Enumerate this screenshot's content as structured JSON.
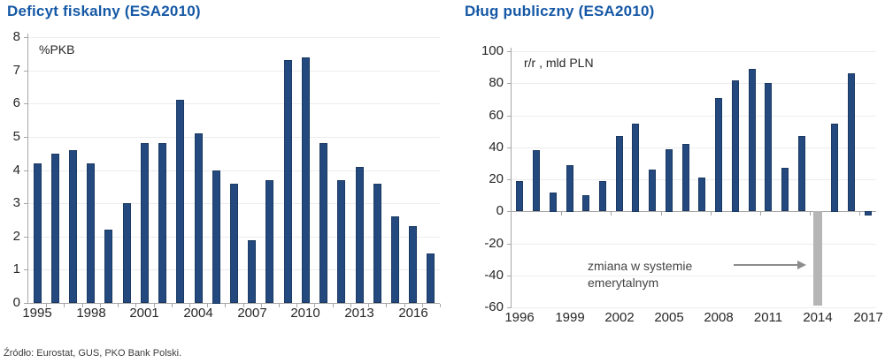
{
  "source_note": "Źródło: Eurostat, GUS, PKO Bank Polski.",
  "colors": {
    "title": "#1558a5",
    "bar": "#24497e",
    "bar_border": "#1b3a63",
    "highlight_bar": "#b5b5b5",
    "axis": "#a6a6a6",
    "gridline": "#ececec",
    "text": "#262626",
    "annotation_text": "#454545",
    "arrow": "#8c8c8c"
  },
  "chart_data": [
    {
      "type": "bar",
      "title": "Deficyt fiskalny (ESA2010)",
      "ylabel": "%PKB",
      "categories": [
        1995,
        1996,
        1997,
        1998,
        1999,
        2000,
        2001,
        2002,
        2003,
        2004,
        2005,
        2006,
        2007,
        2008,
        2009,
        2010,
        2011,
        2012,
        2013,
        2014,
        2015,
        2016,
        2017
      ],
      "values": [
        4.2,
        4.5,
        4.6,
        4.2,
        2.2,
        3.0,
        4.8,
        4.8,
        6.1,
        5.1,
        4.0,
        3.6,
        1.9,
        3.7,
        7.3,
        7.4,
        4.8,
        3.7,
        4.1,
        3.6,
        2.6,
        2.3,
        1.5
      ],
      "ylim": [
        0,
        8
      ],
      "yticks": [
        0,
        1,
        2,
        3,
        4,
        5,
        6,
        7,
        8
      ],
      "xtick_years": [
        1995,
        1998,
        2001,
        2004,
        2007,
        2010,
        2013,
        2016
      ],
      "grid": true,
      "legend": null
    },
    {
      "type": "bar",
      "title": "Dług publiczny (ESA2010)",
      "ylabel": "r/r , mld PLN",
      "categories": [
        1996,
        1997,
        1998,
        1999,
        2000,
        2001,
        2002,
        2003,
        2004,
        2005,
        2006,
        2007,
        2008,
        2009,
        2010,
        2011,
        2012,
        2013,
        2014,
        2015,
        2016,
        2017
      ],
      "values": [
        19,
        38,
        12,
        29,
        10,
        19,
        47,
        55,
        26,
        39,
        42,
        21,
        71,
        82,
        89,
        80,
        27,
        47,
        -59,
        55,
        86,
        -3
      ],
      "ylim": [
        -60,
        100
      ],
      "yticks": [
        -60,
        -40,
        -20,
        0,
        20,
        40,
        60,
        80,
        100
      ],
      "xtick_years": [
        1996,
        1999,
        2002,
        2005,
        2008,
        2011,
        2014,
        2017
      ],
      "grid": true,
      "legend": null,
      "highlight": {
        "year": 2014
      },
      "annotation": {
        "lines": [
          "zmiana w systemie",
          "emerytalnym"
        ],
        "target_year": 2014
      }
    }
  ]
}
